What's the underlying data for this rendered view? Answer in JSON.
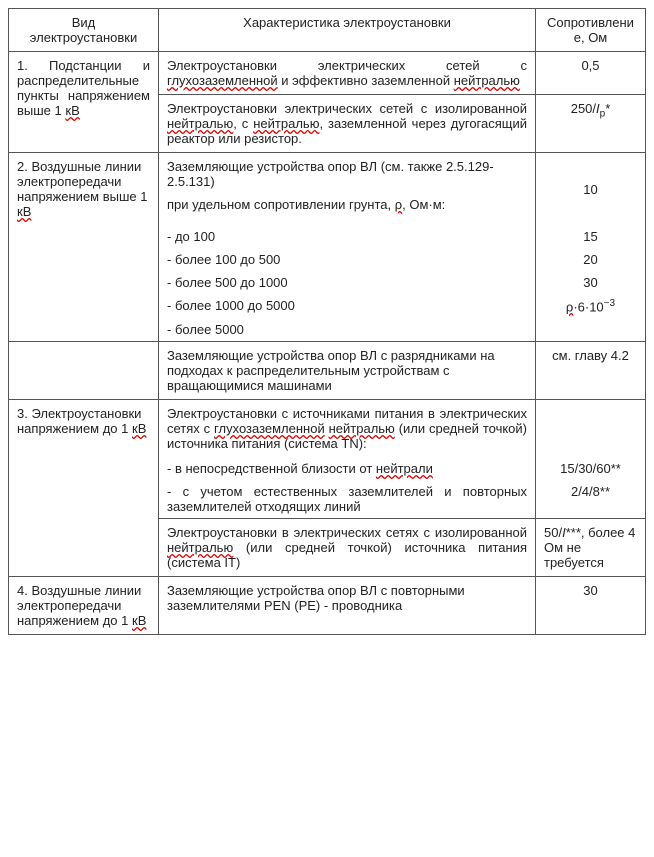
{
  "headers": {
    "col1": "Вид электроустановки",
    "col2": "Характеристика электроустановки",
    "col3": "Сопротивление, Ом"
  },
  "r1": {
    "c2a": "Электроустановки электрических сетей с ",
    "c2b": "глухозаземленной",
    "c2c": " и эффективно заземленной ",
    "c2d": "нейтралью",
    "v": "0,5"
  },
  "r2": {
    "c1a": "1. Подстанции и распределительные пункты напряжением выше 1 ",
    "c1b": "кВ",
    "c2a": "Электроустановки электрических сетей с изолированной ",
    "c2b": "нейтралью",
    "c2c": ", с ",
    "c2d": "нейтралью",
    "c2e": ", заземленной через дугогасящий реактор или резистор.",
    "v_pre": "250/",
    "v_sub": "р",
    "v_post": "*"
  },
  "r3": {
    "c1a": "2. Воздушные линии электропередачи напряжением выше 1 ",
    "c1b": "кВ",
    "c2": "Заземляющие устройства опор ВЛ (см. также 2.5.129-2.5.131)"
  },
  "r3_soil": {
    "label_a": "при удельном сопротивлении грунта, ",
    "label_sym": "ρ",
    "label_b": ", Ом·м:",
    "v": "10"
  },
  "r3_100": {
    "label": "- до 100",
    "v": "15"
  },
  "r3_500": {
    "label": "- более 100 до 500",
    "v": "20"
  },
  "r3_1000": {
    "label": "- более 500 до 1000",
    "v": "30"
  },
  "r3_5000": {
    "label": "- более 1000 до 5000",
    "v_sym": "ρ",
    "v_mid": "·6·10",
    "v_exp": "−3"
  },
  "r3_more": {
    "label": "- более 5000"
  },
  "r3_razr": {
    "c2": "Заземляющие устройства опор ВЛ с разрядниками на подходах к распределительным устройствам с вращающимися машинами",
    "v": "см. главу 4.2"
  },
  "r4": {
    "c1a": "3. Электроустановки напряжением до 1 ",
    "c1b": "кВ",
    "p1a": "Электроустановки с источниками питания в электрических сетях с ",
    "p1b": "глухозаземленной",
    "p1c": " ",
    "p1d": "нейтралью",
    "p1e": " (или средней точкой) источника питания (система TN):",
    "p2a": "- в непосредственной близости от ",
    "p2b": "нейтрали",
    "p3": "- с учетом естественных заземлителей и повторных заземлителей отходящих линий",
    "v2": "15/30/60**",
    "v3": "2/4/8**"
  },
  "r4_it": {
    "c2a": "Электроустановки в электрических сетях с изолированной ",
    "c2b": "нейтралью",
    "c2c": " (или средней точкой) источника питания (система IT)",
    "v_pre": "50/",
    "v_post": "***, более 4 Ом не требуется"
  },
  "r5": {
    "c1a": "4. Воздушные линии электропередачи напряжением до 1 ",
    "c1b": "кВ",
    "c2": "Заземляющие устройства опор ВЛ с повторными заземлителями PEN (PE) - проводника",
    "v": "30"
  }
}
